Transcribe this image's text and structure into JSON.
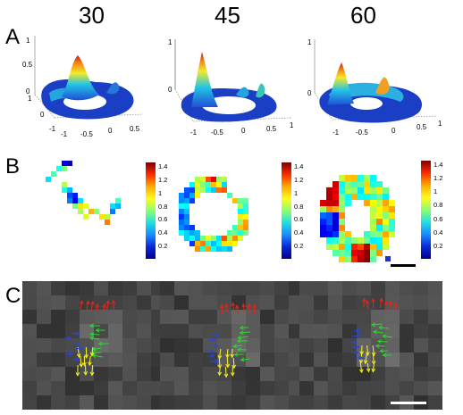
{
  "columns": [
    "30",
    "45",
    "60"
  ],
  "panels": [
    "A",
    "B",
    "C"
  ],
  "surface_axes": {
    "z_ticks": [
      "1",
      "0.5",
      "0"
    ],
    "x_ticks": [
      "-1",
      "-0.5",
      "0",
      "0.5",
      "1"
    ],
    "y_ticks": [
      "1",
      "0",
      "-1"
    ]
  },
  "colorbars": [
    {
      "ticks": [
        "1.4",
        "1.2",
        "1",
        "0.8",
        "0.6",
        "0.4",
        "0.2"
      ]
    },
    {
      "ticks": [
        "1.4",
        "1.2",
        "1",
        "0.8",
        "0.6",
        "0.4",
        "0.2"
      ]
    },
    {
      "ticks": [
        "1.4",
        "1.2",
        "1",
        "0.8",
        "0.6",
        "0.4",
        "0.2"
      ]
    }
  ],
  "arrow_colors": {
    "red": "#e0261c",
    "green": "#2bd62b",
    "yellow": "#f2ee22",
    "blue": "#2a46d8"
  }
}
